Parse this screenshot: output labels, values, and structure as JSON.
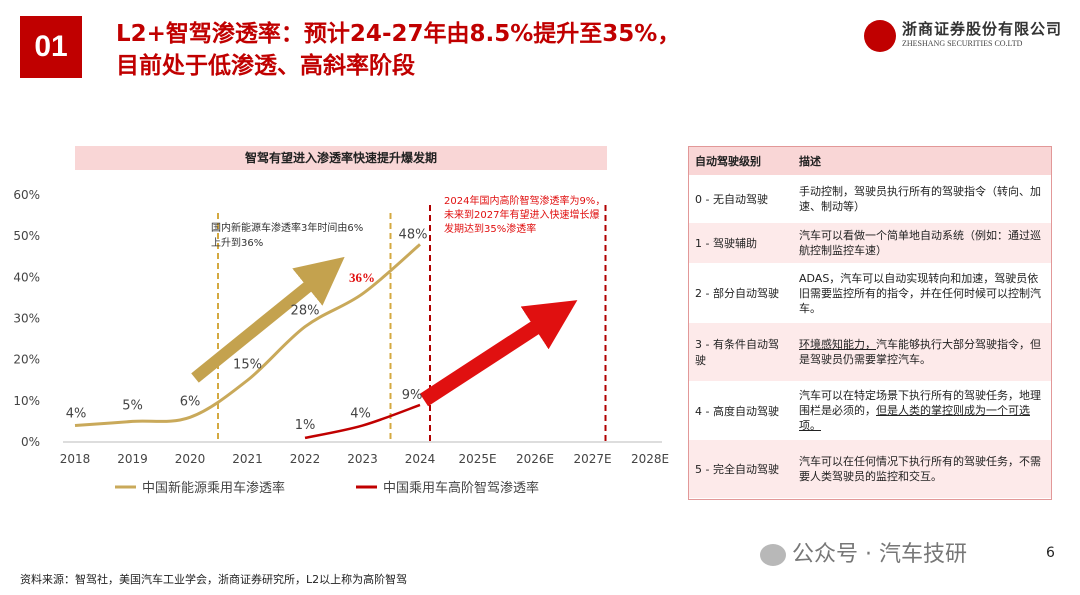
{
  "header": {
    "badge": "01",
    "title_line1": "L2+智驾渗透率：预计24-27年由8.5%提升至35%，",
    "title_line2": "目前处于低渗透、高斜率阶段",
    "company_cn": "浙商证券股份有限公司",
    "company_en": "ZHESHANG SECURITIES CO.LTD"
  },
  "chart_data": {
    "type": "line",
    "title": "智驾有望进入渗透率快速提升爆发期",
    "categories": [
      "2018",
      "2019",
      "2020",
      "2021",
      "2022",
      "2023",
      "2024",
      "2025E",
      "2026E",
      "2027E",
      "2028E"
    ],
    "ylim": [
      0,
      60
    ],
    "yticks": [
      "0%",
      "10%",
      "20%",
      "30%",
      "40%",
      "50%",
      "60%"
    ],
    "grid": false,
    "legend_position": "bottom",
    "series": [
      {
        "name": "中国新能源乘用车渗透率",
        "color": "#c9a95a",
        "values": [
          4,
          5,
          6,
          15,
          28,
          36,
          48,
          null,
          null,
          null,
          null
        ],
        "labels": [
          "4%",
          "5%",
          "6%",
          "15%",
          "28%",
          "36%",
          "48%",
          "",
          "",
          "",
          ""
        ]
      },
      {
        "name": "中国乘用车高阶智驾渗透率",
        "color": "#c00000",
        "values": [
          null,
          null,
          null,
          null,
          1,
          4,
          9,
          null,
          null,
          null,
          null
        ],
        "labels": [
          "",
          "",
          "",
          "",
          "1%",
          "4%",
          "9%",
          "",
          "",
          "",
          ""
        ]
      }
    ],
    "annotations": {
      "nev_note": [
        "国内新能源车渗透率3年时间由6%",
        "上升到36%"
      ],
      "nev_highlight": "36%",
      "adas_note": [
        "2024年国内高阶智驾渗透率为9%，",
        "未来到2027年有望进入快速增长爆",
        "发期达到35%渗透率"
      ]
    }
  },
  "levels_table": {
    "headers": [
      "自动驾驶级别",
      "描述"
    ],
    "rows": [
      {
        "level": "0 - 无自动驾驶",
        "desc": "手动控制，驾驶员执行所有的驾驶指令（转向、加速、制动等）"
      },
      {
        "level": "1 - 驾驶辅助",
        "desc": "汽车可以看做一个简单地自动系统（例如：通过巡航控制监控车速）"
      },
      {
        "level": "2 - 部分自动驾驶",
        "desc": "ADAS，汽车可以自动实现转向和加速，驾驶员依旧需要监控所有的指令，并在任何时候可以控制汽车。"
      },
      {
        "level": "3 - 有条件自动驾驶",
        "desc_underlined": "环境感知能力，",
        "desc": "汽车能够执行大部分驾驶指令，但是驾驶员仍需要掌控汽车。"
      },
      {
        "level": "4 - 高度自动驾驶",
        "desc": "汽车可以在特定场景下执行所有的驾驶任务，地理围栏是必须的，",
        "desc_underlined": "但是人类的掌控则成为一个可选项。"
      },
      {
        "level": "5 - 完全自动驾驶",
        "desc": "汽车可以在任何情况下执行所有的驾驶任务，不需要人类驾驶员的监控和交互。"
      }
    ]
  },
  "footer": {
    "source": "资料来源：智驾社，美国汽车工业学会，浙商证券研究所，L2以上称为高阶智驾",
    "watermark": "公众号 · 汽车技研",
    "page": "6"
  }
}
